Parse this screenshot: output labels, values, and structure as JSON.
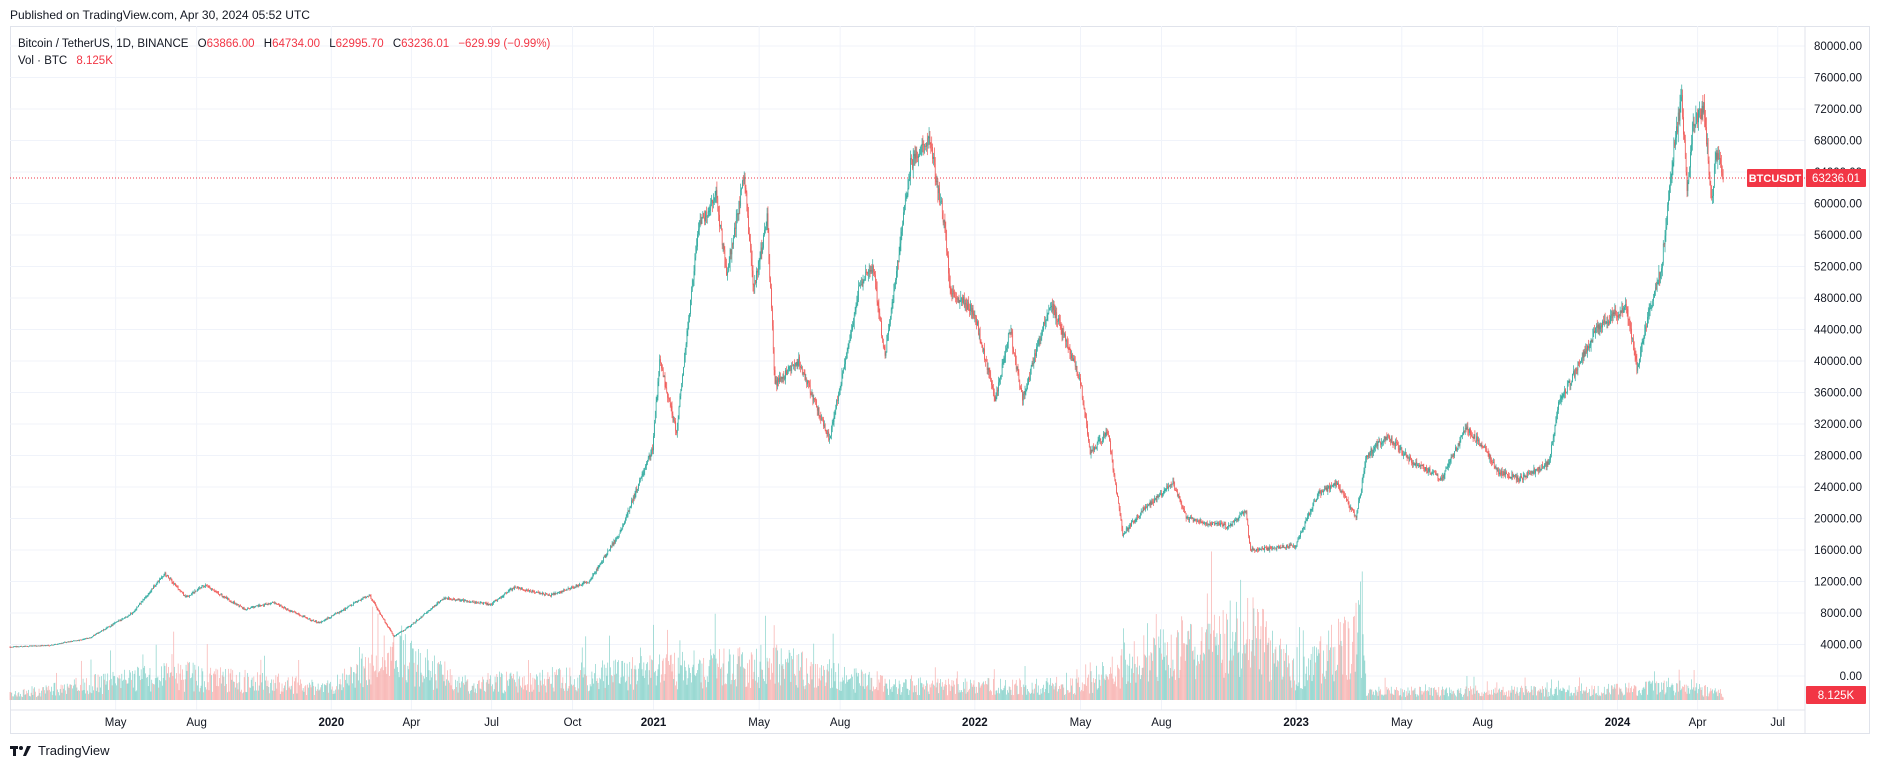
{
  "published": "Published on TradingView.com, Apr 30, 2024 05:52 UTC",
  "legend": {
    "symbol": "Bitcoin / TetherUS, 1D, BINANCE",
    "open_label": "O",
    "open": "63866.00",
    "high_label": "H",
    "high": "64734.00",
    "low_label": "L",
    "low": "62995.70",
    "close_label": "C",
    "close": "63236.01",
    "change": "−629.99 (−0.99%)",
    "volume_label": "Vol · BTC",
    "volume": "8.125K"
  },
  "footer": {
    "brand": "TradingView",
    "logo_icon": "tradingview-logo-icon"
  },
  "colors": {
    "up": "#26a69a",
    "down": "#ef5350",
    "price_line": "#f23645",
    "vol_up": "#7fcfc7",
    "vol_down": "#f7a9a7"
  },
  "chart_data": {
    "type": "candlestick",
    "symbol_tag": "BTCUSDT",
    "last_price": 63236.01,
    "last_volume_label": "8.125K",
    "price_axis_ticks": [
      "80000.00",
      "76000.00",
      "72000.00",
      "68000.00",
      "64000.00",
      "60000.00",
      "56000.00",
      "52000.00",
      "48000.00",
      "44000.00",
      "40000.00",
      "36000.00",
      "32000.00",
      "28000.00",
      "24000.00",
      "20000.00",
      "16000.00",
      "12000.00",
      "8000.00",
      "4000.00",
      "0.00"
    ],
    "price_range": [
      0,
      80000
    ],
    "time_axis_ticks": [
      "May",
      "Aug",
      "2020",
      "Apr",
      "Jul",
      "Oct",
      "2021",
      "May",
      "Aug",
      "2022",
      "May",
      "Aug",
      "2023",
      "May",
      "Aug",
      "2024",
      "Apr",
      "Jul"
    ],
    "time_tick_dates": [
      "2019-05-01",
      "2019-08-01",
      "2020-01-01",
      "2020-04-01",
      "2020-07-01",
      "2020-10-01",
      "2021-01-01",
      "2021-05-01",
      "2021-08-01",
      "2022-01-01",
      "2022-05-01",
      "2022-08-01",
      "2023-01-01",
      "2023-05-01",
      "2023-08-01",
      "2024-01-01",
      "2024-04-01",
      "2024-07-01"
    ],
    "date_range": [
      "2019-01-01",
      "2024-08-01"
    ],
    "price_keypoints": [
      [
        "2019-01-01",
        3700
      ],
      [
        "2019-02-15",
        3900
      ],
      [
        "2019-04-01",
        4800
      ],
      [
        "2019-05-20",
        8000
      ],
      [
        "2019-06-26",
        13000
      ],
      [
        "2019-07-20",
        10000
      ],
      [
        "2019-08-10",
        11500
      ],
      [
        "2019-09-24",
        8500
      ],
      [
        "2019-10-26",
        9300
      ],
      [
        "2019-12-18",
        6700
      ],
      [
        "2020-02-13",
        10300
      ],
      [
        "2020-03-12",
        5000
      ],
      [
        "2020-03-31",
        6400
      ],
      [
        "2020-05-08",
        9900
      ],
      [
        "2020-06-30",
        9100
      ],
      [
        "2020-07-27",
        11300
      ],
      [
        "2020-09-05",
        10200
      ],
      [
        "2020-10-20",
        12000
      ],
      [
        "2020-11-25",
        18500
      ],
      [
        "2020-12-31",
        29000
      ],
      [
        "2021-01-08",
        40000
      ],
      [
        "2021-01-27",
        31000
      ],
      [
        "2021-02-21",
        57000
      ],
      [
        "2021-03-13",
        61000
      ],
      [
        "2021-03-25",
        51000
      ],
      [
        "2021-04-14",
        63500
      ],
      [
        "2021-04-25",
        49000
      ],
      [
        "2021-05-10",
        58000
      ],
      [
        "2021-05-19",
        37000
      ],
      [
        "2021-06-15",
        40000
      ],
      [
        "2021-07-20",
        30000
      ],
      [
        "2021-08-23",
        49500
      ],
      [
        "2021-09-07",
        52000
      ],
      [
        "2021-09-21",
        40500
      ],
      [
        "2021-10-20",
        65000
      ],
      [
        "2021-11-10",
        68500
      ],
      [
        "2021-11-28",
        57000
      ],
      [
        "2021-12-04",
        49000
      ],
      [
        "2021-12-31",
        46300
      ],
      [
        "2022-01-24",
        35000
      ],
      [
        "2022-02-10",
        44000
      ],
      [
        "2022-02-24",
        35000
      ],
      [
        "2022-03-28",
        47500
      ],
      [
        "2022-04-30",
        38000
      ],
      [
        "2022-05-12",
        28500
      ],
      [
        "2022-06-01",
        31000
      ],
      [
        "2022-06-18",
        18000
      ],
      [
        "2022-07-10",
        21000
      ],
      [
        "2022-08-14",
        24500
      ],
      [
        "2022-08-30",
        20000
      ],
      [
        "2022-10-15",
        19000
      ],
      [
        "2022-11-05",
        21000
      ],
      [
        "2022-11-10",
        16000
      ],
      [
        "2022-12-31",
        16500
      ],
      [
        "2023-01-25",
        23000
      ],
      [
        "2023-02-16",
        24500
      ],
      [
        "2023-03-10",
        20000
      ],
      [
        "2023-03-22",
        28000
      ],
      [
        "2023-04-14",
        30500
      ],
      [
        "2023-05-10",
        27500
      ],
      [
        "2023-06-15",
        25000
      ],
      [
        "2023-07-13",
        31500
      ],
      [
        "2023-08-01",
        29200
      ],
      [
        "2023-08-18",
        26000
      ],
      [
        "2023-09-11",
        25000
      ],
      [
        "2023-10-15",
        27000
      ],
      [
        "2023-10-26",
        34500
      ],
      [
        "2023-12-08",
        44000
      ],
      [
        "2024-01-11",
        47000
      ],
      [
        "2024-01-23",
        39000
      ],
      [
        "2024-02-09",
        47500
      ],
      [
        "2024-02-20",
        52000
      ],
      [
        "2024-03-05",
        67000
      ],
      [
        "2024-03-14",
        73500
      ],
      [
        "2024-03-20",
        61500
      ],
      [
        "2024-03-27",
        70000
      ],
      [
        "2024-04-08",
        72000
      ],
      [
        "2024-04-17",
        60500
      ],
      [
        "2024-04-22",
        66500
      ],
      [
        "2024-04-30",
        63236
      ]
    ],
    "volume_keypoints": [
      [
        "2019-01-01",
        500
      ],
      [
        "2019-06-26",
        2500
      ],
      [
        "2019-12-31",
        1200
      ],
      [
        "2020-03-12",
        4500
      ],
      [
        "2020-06-01",
        1500
      ],
      [
        "2021-01-08",
        2800
      ],
      [
        "2021-05-19",
        3500
      ],
      [
        "2021-10-01",
        1300
      ],
      [
        "2022-05-01",
        1400
      ],
      [
        "2022-06-18",
        3200
      ],
      [
        "2022-07-15",
        4500
      ],
      [
        "2022-09-15",
        5000
      ],
      [
        "2022-11-10",
        7000
      ],
      [
        "2023-01-01",
        2500
      ],
      [
        "2023-02-15",
        5000
      ],
      [
        "2023-03-15",
        6500
      ],
      [
        "2023-03-22",
        800
      ],
      [
        "2023-12-01",
        900
      ],
      [
        "2024-03-05",
        1300
      ],
      [
        "2024-04-30",
        700
      ]
    ]
  }
}
